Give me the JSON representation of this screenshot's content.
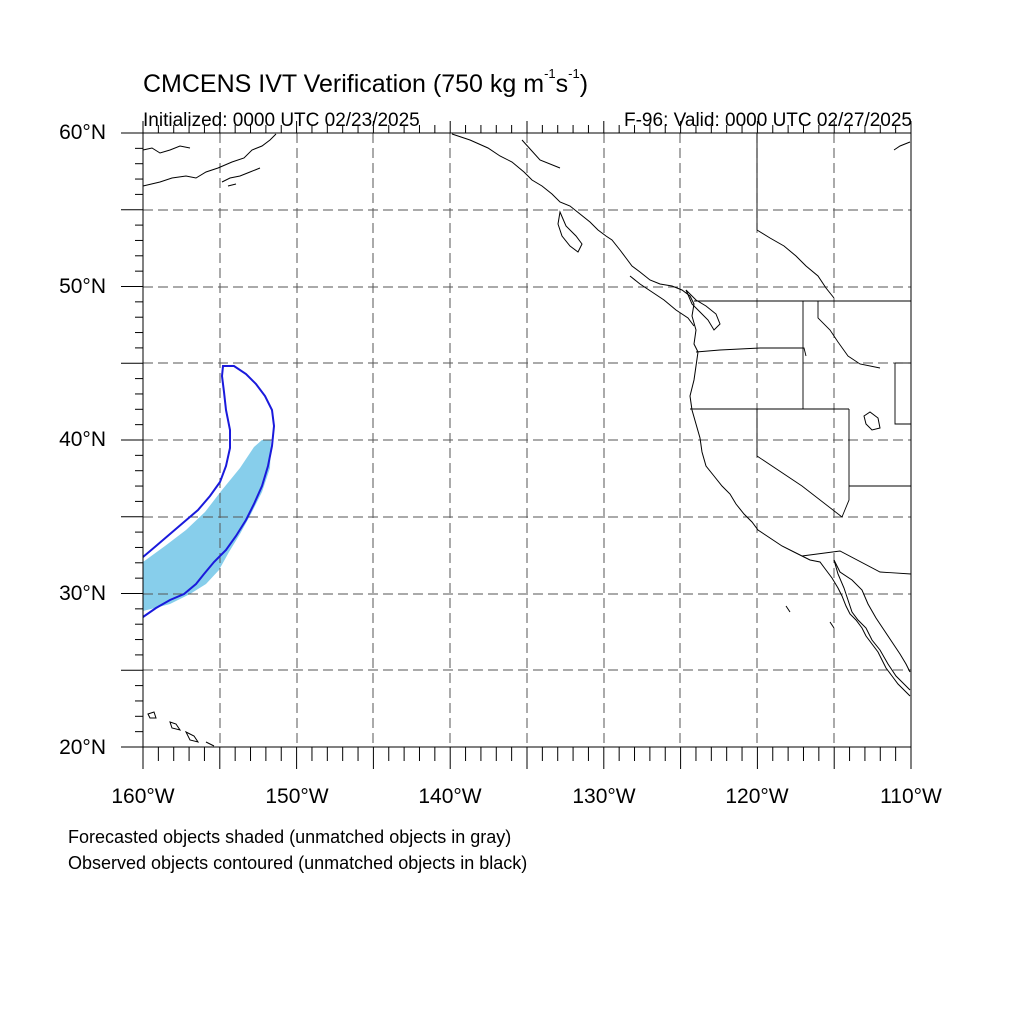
{
  "map": {
    "title_main": "CMCENS IVT Verification (750 kg m",
    "title_sup1": "-1",
    "title_mid": "s",
    "title_sup2": "-1",
    "title_end": ")",
    "initialized": "Initialized: 0000 UTC 02/23/2025",
    "valid": "F-96: Valid: 0000 UTC 02/27/2025",
    "lat_labels": [
      "60°N",
      "50°N",
      "40°N",
      "30°N",
      "20°N"
    ],
    "lon_labels": [
      "160°W",
      "150°W",
      "140°W",
      "130°W",
      "120°W",
      "110°W"
    ],
    "footer_forecast": "Forecasted objects shaded (unmatched objects in gray)",
    "footer_observed": "Observed objects contoured (unmatched objects in black)",
    "extent": {
      "lon": [
        -160,
        -110
      ],
      "lat": [
        20,
        60
      ]
    },
    "gridlines": "dashed every 5°",
    "colors": {
      "forecast_fill": "#87ceeb",
      "observed_contour": "#1a1adc",
      "coast": "#000000",
      "grid": "#555555"
    }
  }
}
